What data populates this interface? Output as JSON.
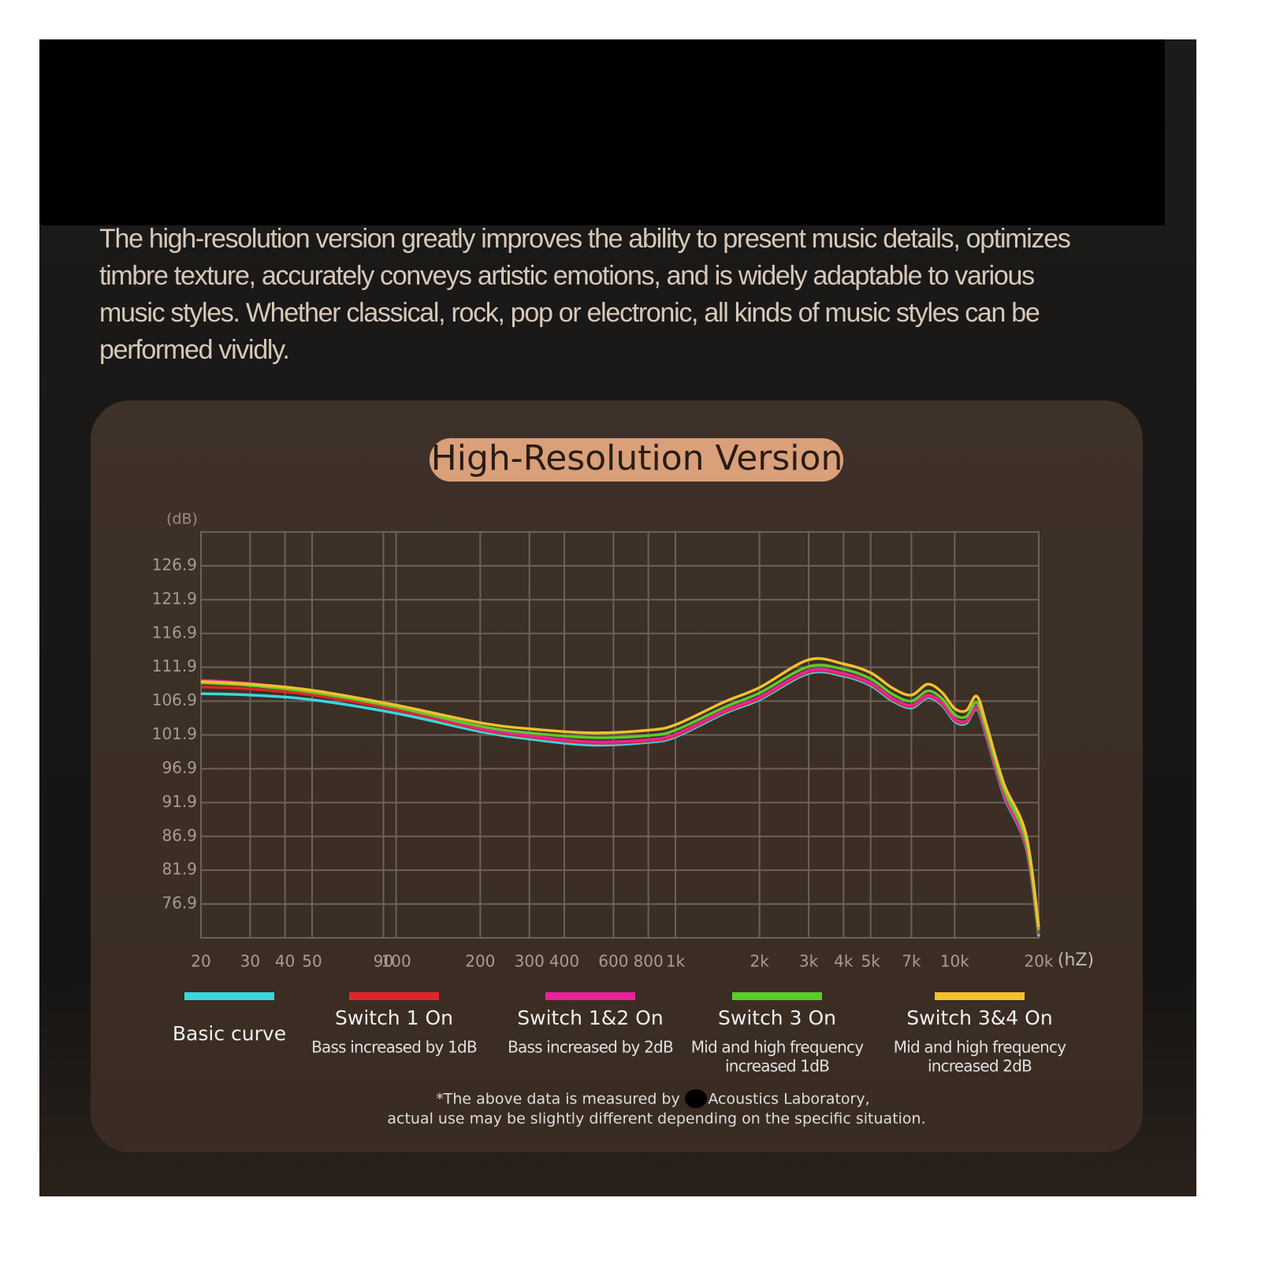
{
  "intro": [
    "The high-resolution version greatly improves the ability to present music details, optimizes",
    "timbre texture, accurately conveys artistic emotions, and is widely adaptable to various",
    "music styles. Whether classical, rock, pop or electronic, all kinds of music styles can be",
    "performed vividly."
  ],
  "chart_data": {
    "type": "line",
    "title": "High-Resolution Version",
    "y_label": "(dB)",
    "x_label": "(hZ)",
    "log_x": true,
    "grid": true,
    "x": [
      20,
      30,
      50,
      100,
      200,
      300,
      500,
      800,
      1000,
      1500,
      2000,
      3000,
      4000,
      5000,
      6000,
      7000,
      8000,
      9000,
      10000,
      11000,
      12000,
      13000,
      15000,
      18000,
      20000
    ],
    "xlim": [
      20,
      20000
    ],
    "xticks": [
      20,
      30,
      40,
      50,
      90,
      100,
      200,
      300,
      400,
      600,
      800,
      {
        "value": 1000,
        "label": "1k"
      },
      {
        "value": 2000,
        "label": "2k"
      },
      {
        "value": 3000,
        "label": "3k"
      },
      {
        "value": 4000,
        "label": "4k"
      },
      {
        "value": 5000,
        "label": "5k"
      },
      {
        "value": 7000,
        "label": "7k"
      },
      {
        "value": 10000,
        "label": "10k"
      },
      {
        "value": 20000,
        "label": "20k"
      }
    ],
    "ylim": [
      71.9,
      131.9
    ],
    "yticks": [
      76.9,
      81.9,
      86.9,
      91.9,
      96.9,
      101.9,
      106.9,
      111.9,
      116.9,
      121.9,
      126.9
    ],
    "series": [
      {
        "name": "Basic curve",
        "color": "#3ad7e0",
        "values": [
          108.0,
          107.8,
          107.1,
          105.1,
          102.4,
          101.3,
          100.4,
          100.8,
          101.6,
          105.1,
          107.1,
          111.0,
          110.6,
          109.2,
          106.9,
          105.9,
          107.4,
          106.3,
          103.9,
          103.6,
          105.7,
          101.6,
          92.9,
          85.3,
          72.1
        ]
      },
      {
        "name": "Switch 1 On",
        "note": [
          "Bass increased by 1dB"
        ],
        "color": "#e0262a",
        "values": [
          109.0,
          108.7,
          107.8,
          105.6,
          102.7,
          101.6,
          100.7,
          101.0,
          101.8,
          105.3,
          107.3,
          111.2,
          110.8,
          109.4,
          107.1,
          106.1,
          107.6,
          106.5,
          104.1,
          103.8,
          105.9,
          101.8,
          93.1,
          85.5,
          72.5
        ]
      },
      {
        "name": "Switch 1&2 On",
        "note": [
          "Bass increased by 2dB"
        ],
        "color": "#e8239a",
        "values": [
          110.0,
          109.5,
          108.4,
          106.0,
          102.9,
          101.8,
          100.9,
          101.2,
          102.0,
          105.5,
          107.5,
          111.4,
          111.0,
          109.6,
          107.3,
          106.3,
          107.8,
          106.7,
          104.3,
          104.0,
          106.1,
          102.0,
          93.3,
          85.7,
          73.0
        ]
      },
      {
        "name": "Switch 3 On",
        "note": [
          "Mid and high frequency",
          "increased 1dB"
        ],
        "color": "#5ccc2a",
        "values": [
          109.6,
          109.2,
          108.2,
          106.0,
          103.2,
          102.2,
          101.5,
          101.8,
          102.6,
          106.0,
          108.1,
          112.0,
          111.6,
          110.2,
          107.9,
          106.9,
          108.4,
          107.3,
          104.9,
          104.6,
          106.7,
          102.6,
          93.9,
          86.3,
          73.0
        ]
      },
      {
        "name": "Switch 3&4 On",
        "note": [
          "Mid and high frequency",
          "increased 2dB"
        ],
        "color": "#f2c12c",
        "values": [
          109.8,
          109.4,
          108.5,
          106.3,
          103.7,
          102.8,
          102.2,
          102.6,
          103.4,
          106.8,
          108.9,
          113.0,
          112.4,
          111.1,
          108.8,
          107.8,
          109.4,
          108.2,
          105.8,
          105.5,
          107.6,
          103.4,
          94.7,
          87.2,
          73.5
        ]
      }
    ]
  },
  "footnote": [
    "*The above data is measured by",
    "Acoustics Laboratory,",
    "actual use may be slightly different depending on the specific situation."
  ]
}
